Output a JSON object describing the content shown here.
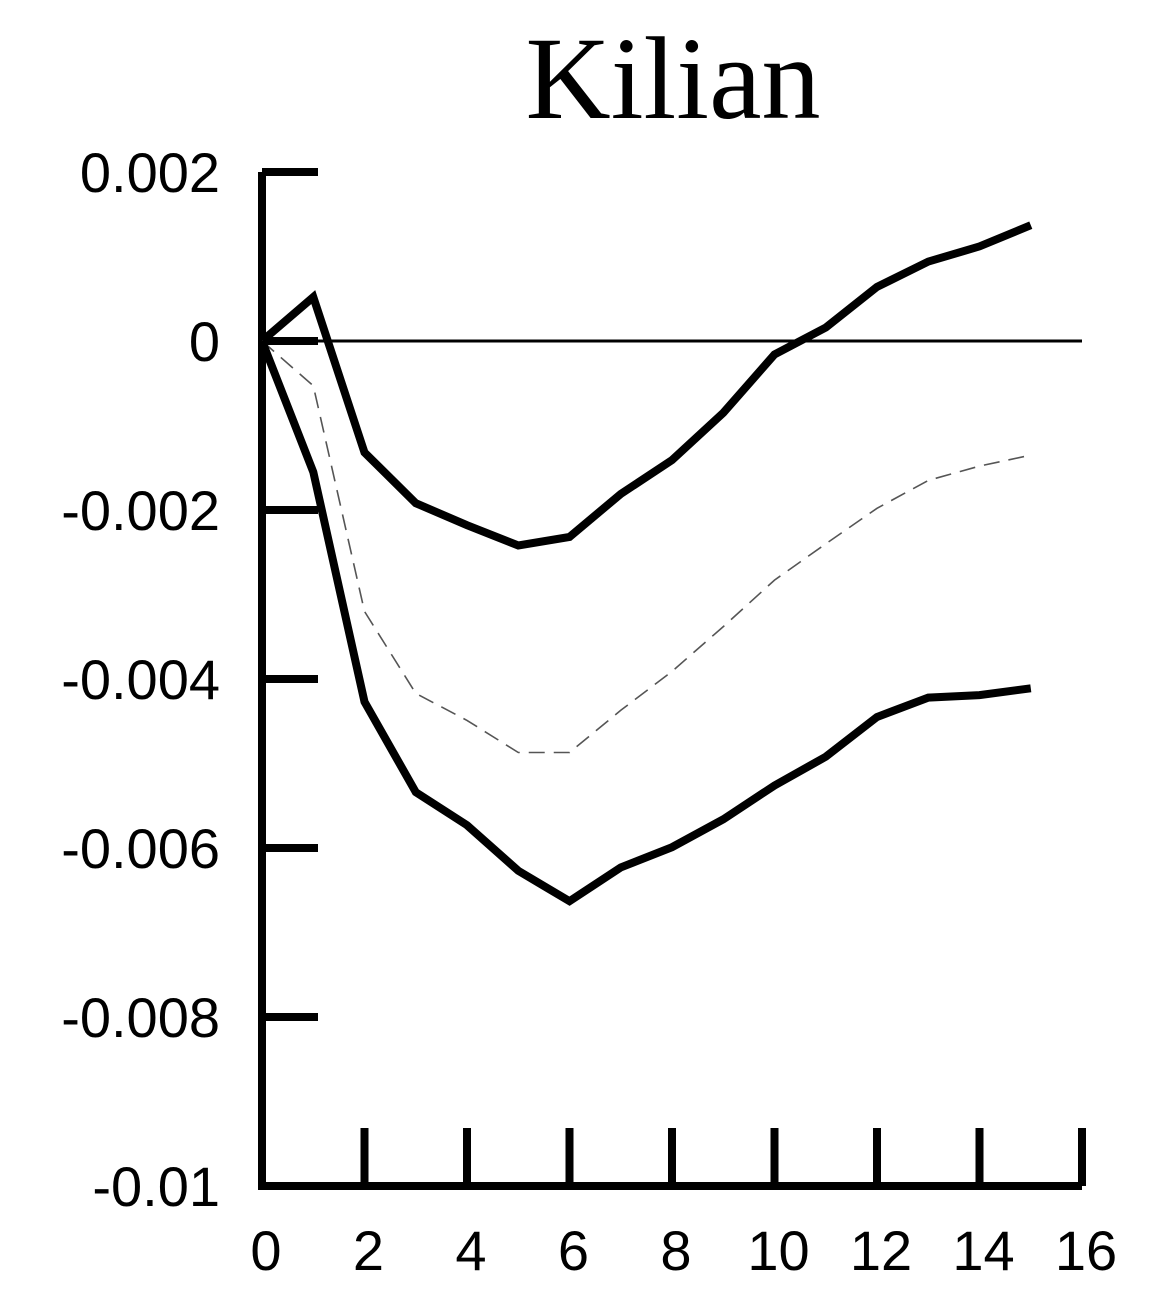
{
  "chart_data": {
    "type": "line",
    "title": "Kilian",
    "xlabel": "",
    "ylabel": "",
    "xlim": [
      0,
      16
    ],
    "ylim": [
      -0.01,
      0.002
    ],
    "x_ticks": [
      0,
      2,
      4,
      6,
      8,
      10,
      12,
      14,
      16
    ],
    "x_tick_labels": [
      "0",
      "2",
      "4",
      "6",
      "8",
      "10",
      "12",
      "14",
      "16"
    ],
    "y_ticks": [
      0.002,
      0,
      -0.002,
      -0.004,
      -0.006,
      -0.008,
      -0.01
    ],
    "y_tick_labels": [
      "0.002",
      "0",
      "-0.002",
      "-0.004",
      "-0.006",
      "-0.008",
      "-0.01"
    ],
    "zero_line": true,
    "grid": false,
    "x": [
      0,
      1,
      2,
      3,
      4,
      5,
      6,
      7,
      8,
      9,
      10,
      11,
      12,
      13,
      14,
      15
    ],
    "series": [
      {
        "style": "solid-thick",
        "color": "#000000",
        "values": [
          0.0,
          0.00052,
          -0.00132,
          -0.00192,
          -0.00218,
          -0.00242,
          -0.00232,
          -0.00181,
          -0.00141,
          -0.00085,
          -0.00016,
          0.00016,
          0.00064,
          0.00094,
          0.00112,
          0.00137
        ]
      },
      {
        "style": "dashed-thin",
        "color": "#555555",
        "values": [
          0.0,
          -0.00053,
          -0.0032,
          -0.00417,
          -0.00449,
          -0.00487,
          -0.00487,
          -0.00437,
          -0.00391,
          -0.00338,
          -0.00283,
          -0.0024,
          -0.00198,
          -0.00165,
          -0.00148,
          -0.00135
        ]
      },
      {
        "style": "solid-thick",
        "color": "#000000",
        "values": [
          0.0,
          -0.00155,
          -0.00427,
          -0.00534,
          -0.00573,
          -0.00627,
          -0.00663,
          -0.00623,
          -0.00599,
          -0.00566,
          -0.00526,
          -0.00492,
          -0.00445,
          -0.00422,
          -0.00419,
          -0.00411
        ]
      }
    ]
  }
}
